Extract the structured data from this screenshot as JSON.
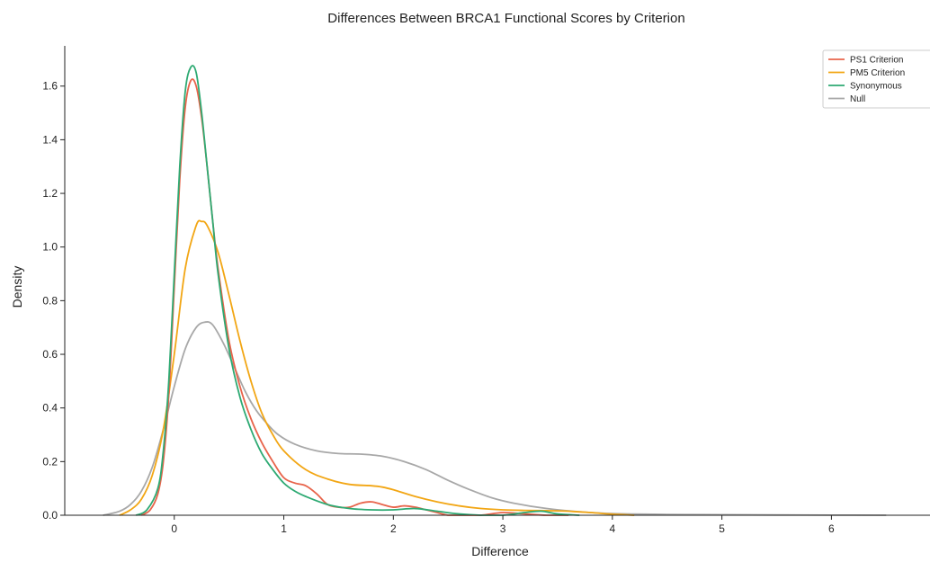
{
  "chart_data": {
    "type": "line",
    "title": "Differences Between BRCA1 Functional Scores by Criterion",
    "xlabel": "Difference",
    "ylabel": "Density",
    "xlim": [
      -1.0,
      6.9
    ],
    "ylim": [
      0,
      1.75
    ],
    "x_ticks": [
      0,
      1,
      2,
      3,
      4,
      5,
      6
    ],
    "y_ticks": [
      0.0,
      0.2,
      0.4,
      0.6,
      0.8,
      1.0,
      1.2,
      1.4,
      1.6
    ],
    "x_tick_labels": [
      "0",
      "1",
      "2",
      "3",
      "4",
      "5",
      "6"
    ],
    "y_tick_labels": [
      "0.0",
      "0.2",
      "0.4",
      "0.6",
      "0.8",
      "1.0",
      "1.2",
      "1.4",
      "1.6"
    ],
    "grid": false,
    "legend_position": "top-right",
    "series": [
      {
        "name": "PS1 Criterion",
        "color": "#e8644b",
        "x": [
          -0.3,
          -0.22,
          -0.15,
          -0.1,
          -0.05,
          0.0,
          0.05,
          0.1,
          0.15,
          0.2,
          0.25,
          0.3,
          0.35,
          0.4,
          0.5,
          0.6,
          0.7,
          0.8,
          0.9,
          1.0,
          1.1,
          1.2,
          1.3,
          1.4,
          1.5,
          1.6,
          1.7,
          1.8,
          1.9,
          2.0,
          2.1,
          2.2,
          2.3,
          2.4,
          2.5,
          2.6,
          2.8,
          3.0,
          3.2,
          3.4,
          3.6
        ],
        "y": [
          0.0,
          0.02,
          0.08,
          0.2,
          0.45,
          0.85,
          1.25,
          1.52,
          1.62,
          1.6,
          1.48,
          1.3,
          1.1,
          0.92,
          0.65,
          0.48,
          0.36,
          0.27,
          0.2,
          0.14,
          0.12,
          0.11,
          0.08,
          0.04,
          0.03,
          0.03,
          0.045,
          0.05,
          0.04,
          0.03,
          0.035,
          0.03,
          0.02,
          0.01,
          0.0,
          0.0,
          0.0,
          0.01,
          0.005,
          0.0,
          0.0
        ]
      },
      {
        "name": "PM5 Criterion",
        "color": "#f2a614",
        "x": [
          -0.5,
          -0.4,
          -0.3,
          -0.2,
          -0.1,
          0.0,
          0.1,
          0.2,
          0.25,
          0.3,
          0.4,
          0.5,
          0.6,
          0.7,
          0.8,
          0.9,
          1.0,
          1.2,
          1.4,
          1.6,
          1.8,
          1.9,
          2.0,
          2.2,
          2.4,
          2.6,
          2.8,
          3.0,
          3.2,
          3.4,
          3.6,
          3.8,
          4.0,
          4.2
        ],
        "y": [
          0.0,
          0.02,
          0.06,
          0.15,
          0.32,
          0.6,
          0.92,
          1.08,
          1.095,
          1.08,
          0.98,
          0.82,
          0.65,
          0.5,
          0.38,
          0.3,
          0.24,
          0.17,
          0.135,
          0.115,
          0.11,
          0.105,
          0.095,
          0.07,
          0.05,
          0.035,
          0.025,
          0.02,
          0.018,
          0.017,
          0.015,
          0.01,
          0.004,
          0.0
        ]
      },
      {
        "name": "Synonymous",
        "color": "#2eaa73",
        "x": [
          -0.35,
          -0.25,
          -0.15,
          -0.1,
          -0.05,
          0.0,
          0.05,
          0.1,
          0.15,
          0.2,
          0.25,
          0.3,
          0.35,
          0.4,
          0.5,
          0.6,
          0.7,
          0.8,
          0.9,
          1.0,
          1.1,
          1.2,
          1.4,
          1.6,
          1.8,
          2.0,
          2.2,
          2.4,
          2.6,
          2.8,
          3.0,
          3.2,
          3.35,
          3.5,
          3.7
        ],
        "y": [
          0.0,
          0.02,
          0.1,
          0.24,
          0.5,
          0.9,
          1.3,
          1.58,
          1.67,
          1.65,
          1.5,
          1.3,
          1.1,
          0.9,
          0.62,
          0.44,
          0.32,
          0.23,
          0.17,
          0.12,
          0.09,
          0.07,
          0.04,
          0.025,
          0.02,
          0.02,
          0.025,
          0.015,
          0.005,
          0.0,
          0.0,
          0.01,
          0.015,
          0.005,
          0.0
        ]
      },
      {
        "name": "Null",
        "color": "#a8a8a8",
        "x": [
          -0.65,
          -0.5,
          -0.4,
          -0.3,
          -0.2,
          -0.1,
          0.0,
          0.1,
          0.2,
          0.28,
          0.35,
          0.45,
          0.55,
          0.65,
          0.75,
          0.85,
          0.95,
          1.1,
          1.3,
          1.5,
          1.7,
          1.9,
          2.1,
          2.3,
          2.5,
          2.7,
          2.9,
          3.1,
          3.4,
          3.7,
          4.0,
          4.5,
          5.0,
          5.5,
          6.0,
          6.5
        ],
        "y": [
          0.0,
          0.015,
          0.04,
          0.09,
          0.18,
          0.32,
          0.48,
          0.62,
          0.7,
          0.72,
          0.71,
          0.64,
          0.55,
          0.46,
          0.39,
          0.34,
          0.3,
          0.265,
          0.24,
          0.23,
          0.228,
          0.22,
          0.2,
          0.17,
          0.13,
          0.095,
          0.065,
          0.045,
          0.025,
          0.013,
          0.006,
          0.003,
          0.002,
          0.001,
          0.0005,
          0.0
        ]
      }
    ]
  }
}
